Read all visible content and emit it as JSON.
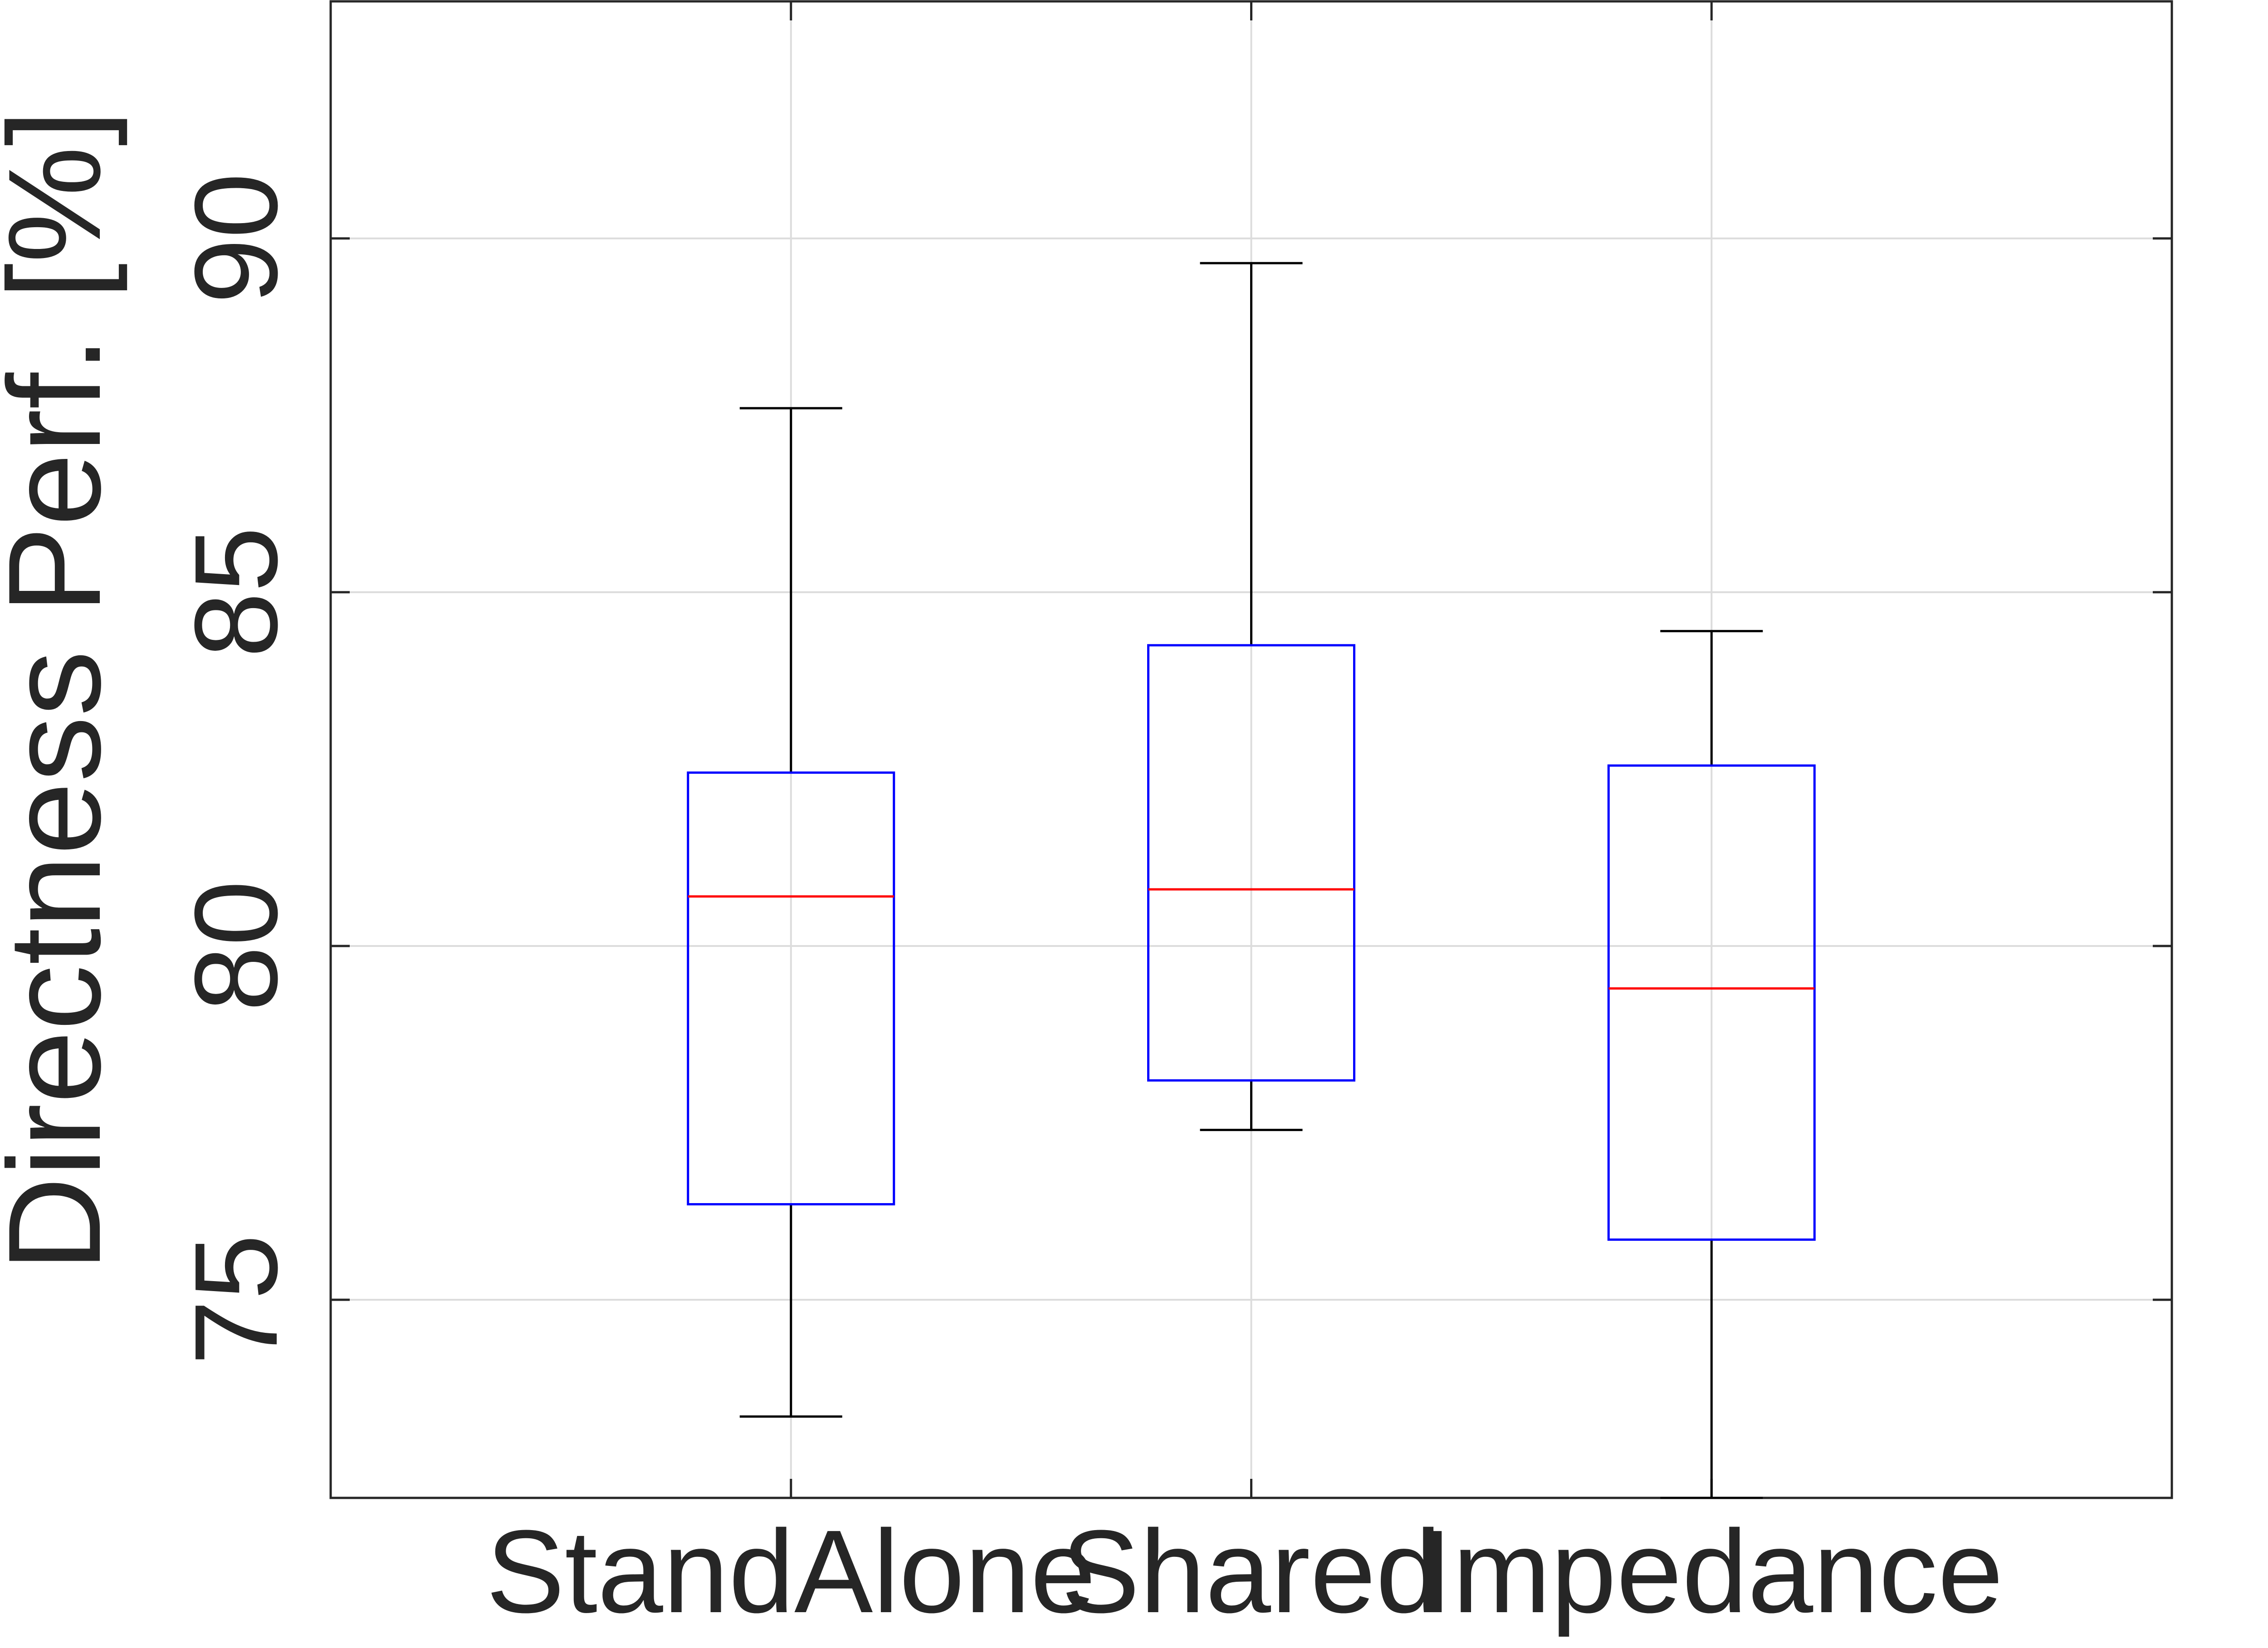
{
  "chart_data": {
    "type": "boxplot",
    "title": "",
    "xlabel": "",
    "ylabel": "Directness Perf. [%]",
    "ylim": [
      72.2,
      93.35
    ],
    "yticks": [
      75,
      80,
      85,
      90
    ],
    "categories": [
      "StandAlone",
      "Shared",
      "Impedance"
    ],
    "boxes": [
      {
        "category": "StandAlone",
        "whisker_low": 73.35,
        "q1": 76.35,
        "median": 80.7,
        "q3": 82.45,
        "whisker_high": 87.6
      },
      {
        "category": "Shared",
        "whisker_low": 77.4,
        "q1": 78.1,
        "median": 80.8,
        "q3": 84.25,
        "whisker_high": 89.65
      },
      {
        "category": "Impedance",
        "whisker_low": 72.2,
        "q1": 75.85,
        "median": 79.4,
        "q3": 82.55,
        "whisker_high": 84.45
      }
    ],
    "grid": true,
    "colors": {
      "box": "#0000ff",
      "median": "#ff0000",
      "whisker": "#000000",
      "grid": "#dcdcdc",
      "axis": "#262626"
    }
  }
}
